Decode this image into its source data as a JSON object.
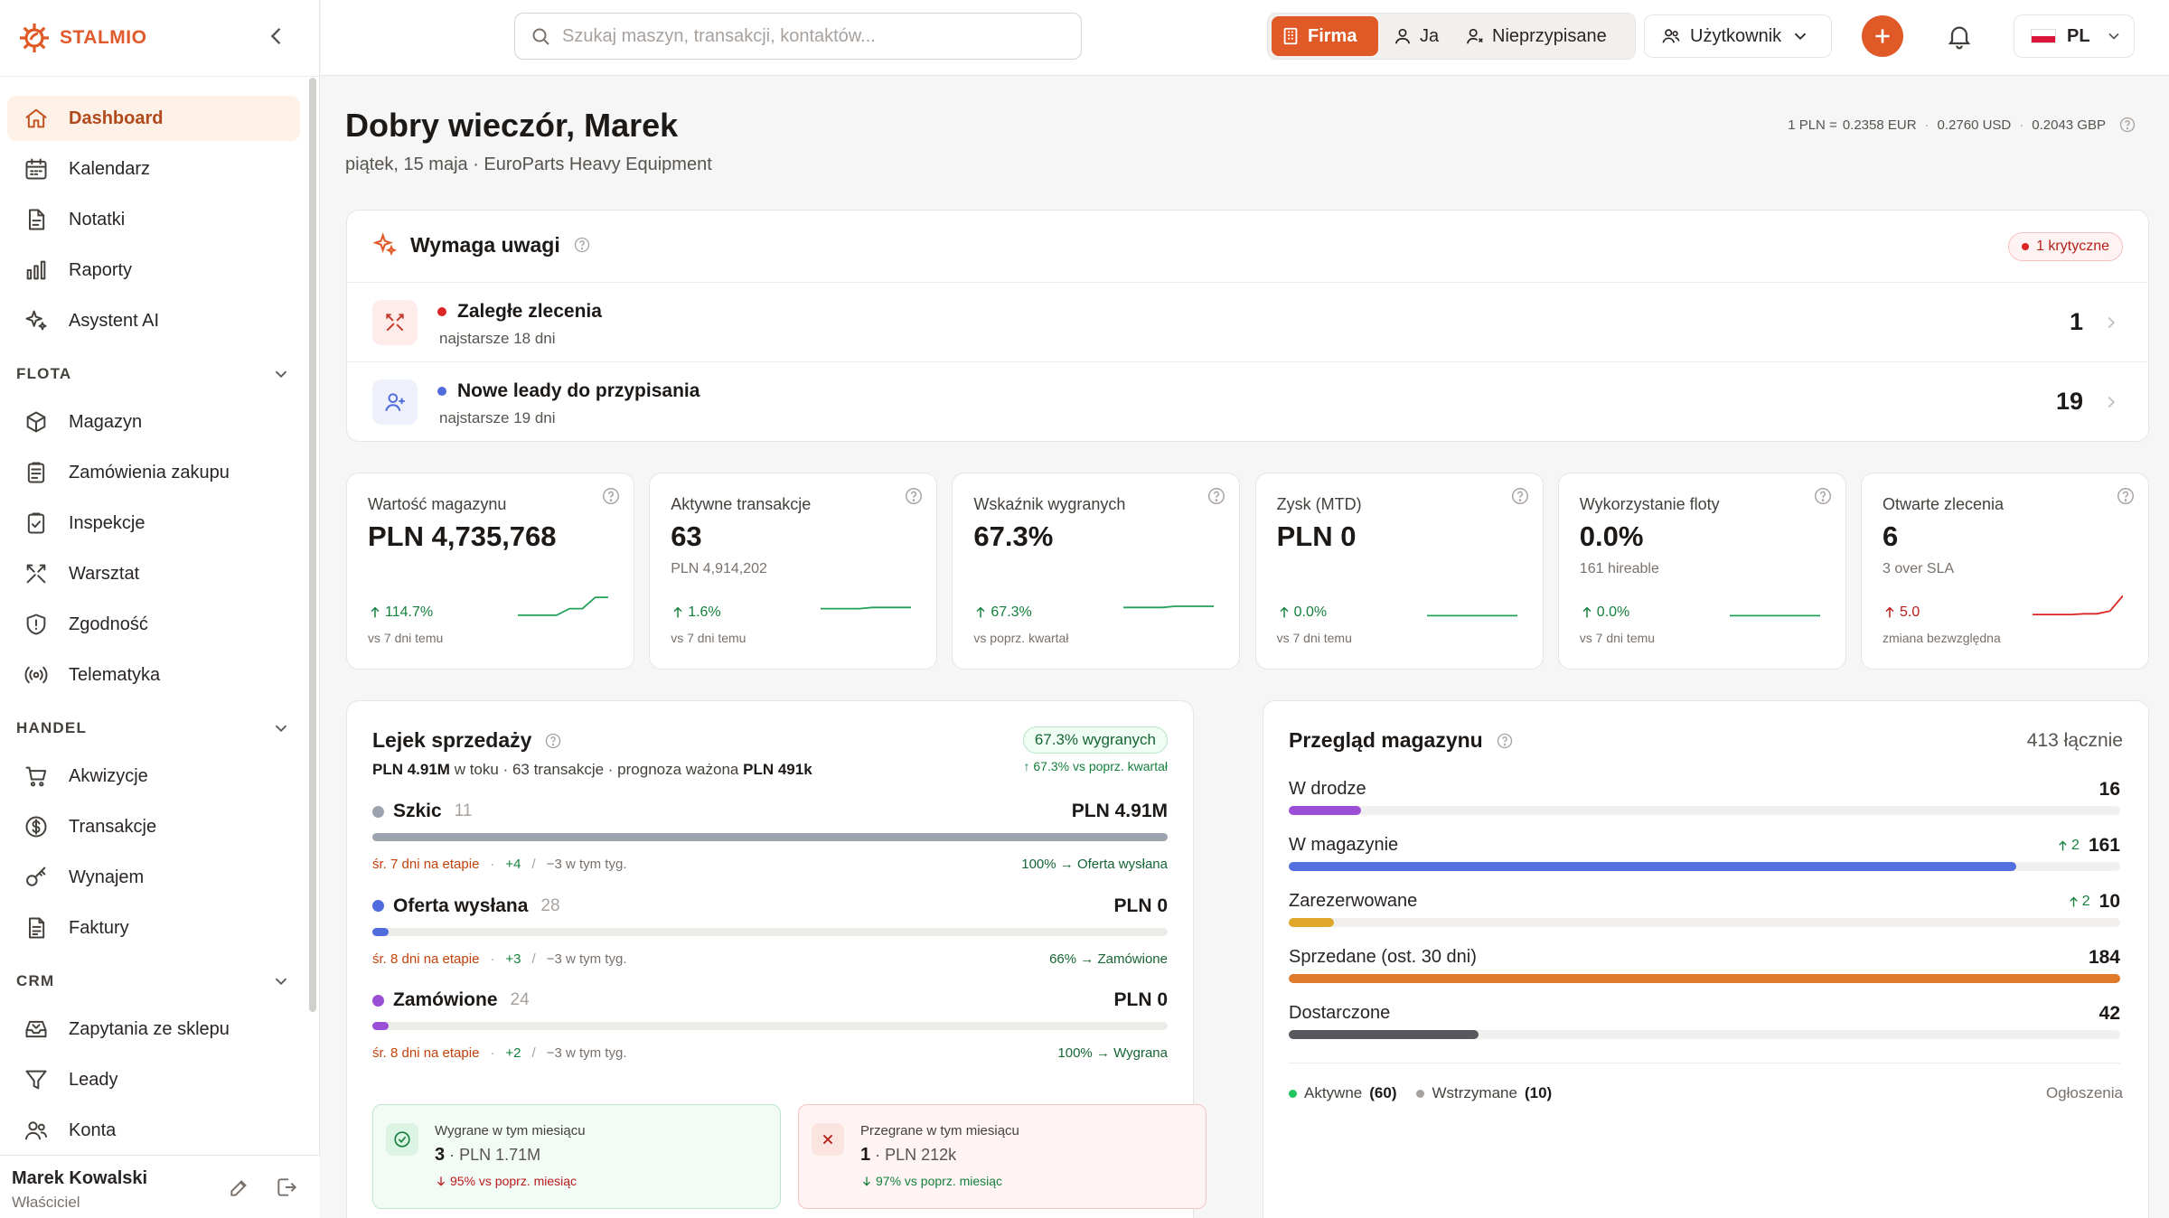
{
  "brand": {
    "name": "STALMIO",
    "accent": "#df5a27"
  },
  "sidebar": {
    "items_top": [
      {
        "label": "Dashboard",
        "icon": "home-icon",
        "active": true
      },
      {
        "label": "Kalendarz",
        "icon": "calendar-icon"
      },
      {
        "label": "Notatki",
        "icon": "note-icon"
      },
      {
        "label": "Raporty",
        "icon": "bar-chart-icon"
      },
      {
        "label": "Asystent AI",
        "icon": "sparkles-icon"
      }
    ],
    "sections": [
      {
        "title": "FLOTA",
        "items": [
          {
            "label": "Magazyn",
            "icon": "box-icon"
          },
          {
            "label": "Zamówienia zakupu",
            "icon": "clipboard-icon"
          },
          {
            "label": "Inspekcje",
            "icon": "clipboard-check-icon"
          },
          {
            "label": "Warsztat",
            "icon": "tools-icon"
          },
          {
            "label": "Zgodność",
            "icon": "shield-icon"
          },
          {
            "label": "Telematyka",
            "icon": "signal-icon"
          }
        ]
      },
      {
        "title": "HANDEL",
        "items": [
          {
            "label": "Akwizycje",
            "icon": "cart-icon"
          },
          {
            "label": "Transakcje",
            "icon": "dollar-icon"
          },
          {
            "label": "Wynajem",
            "icon": "key-icon"
          },
          {
            "label": "Faktury",
            "icon": "invoice-icon"
          }
        ]
      },
      {
        "title": "CRM",
        "items": [
          {
            "label": "Zapytania ze sklepu",
            "icon": "inbox-icon"
          },
          {
            "label": "Leady",
            "icon": "filter-icon"
          },
          {
            "label": "Konta",
            "icon": "users-icon"
          }
        ]
      }
    ],
    "user": {
      "name": "Marek Kowalski",
      "role": "Właściciel"
    }
  },
  "topbar": {
    "search_placeholder": "Szukaj maszyn, transakcji, kontaktów...",
    "scope": {
      "firma": "Firma",
      "ja": "Ja",
      "nieprzypisane": "Nieprzypisane"
    },
    "user_menu": "Użytkownik",
    "lang": "PL"
  },
  "header": {
    "greeting": "Dobry wieczór, Marek",
    "subtitle": "piątek, 15 maja · EuroParts Heavy Equipment",
    "fx": {
      "base": "1 PLN =",
      "eur": "0.2358 EUR",
      "usd": "0.2760 USD",
      "gbp": "0.2043 GBP",
      "sep": "·"
    }
  },
  "attention": {
    "title": "Wymaga uwagi",
    "badge": "1 krytyczne",
    "rows": [
      {
        "title": "Zaległe zlecenia",
        "sub": "najstarsze 18 dni",
        "count": "1",
        "dot": "#dc2626"
      },
      {
        "title": "Nowe leady do przypisania",
        "sub": "najstarsze 19 dni",
        "count": "19",
        "dot": "#4f6bdc"
      }
    ]
  },
  "kpis": [
    {
      "label": "Wartość magazynu",
      "value": "PLN 4,735,768",
      "sub": "",
      "delta": "114.7%",
      "note": "vs 7 dni temu",
      "trend": [
        0.12,
        0.12,
        0.12,
        0.12,
        0.4,
        0.4,
        0.88,
        0.88
      ],
      "dir": "up"
    },
    {
      "label": "Aktywne transakcje",
      "value": "63",
      "sub": "PLN 4,914,202",
      "delta": "1.6%",
      "note": "vs 7 dni temu",
      "trend": [
        0.4,
        0.4,
        0.4,
        0.4,
        0.45,
        0.45,
        0.45,
        0.45
      ],
      "dir": "up"
    },
    {
      "label": "Wskaźnik wygranych",
      "value": "67.3%",
      "sub": "",
      "delta": "67.3%",
      "note": "vs poprz. kwartał",
      "trend": [
        0.45,
        0.45,
        0.45,
        0.45,
        0.5,
        0.5,
        0.5,
        0.5
      ],
      "dir": "up"
    },
    {
      "label": "Zysk (MTD)",
      "value": "PLN 0",
      "sub": "",
      "delta": "0.0%",
      "note": "vs 7 dni temu",
      "trend": [
        0.1,
        0.1,
        0.1,
        0.1,
        0.1,
        0.1,
        0.1,
        0.1
      ],
      "dir": "up"
    },
    {
      "label": "Wykorzystanie floty",
      "value": "0.0%",
      "sub": "161 hireable",
      "delta": "0.0%",
      "note": "vs 7 dni temu",
      "trend": [
        0.1,
        0.1,
        0.1,
        0.1,
        0.1,
        0.1,
        0.1,
        0.1
      ],
      "dir": "up"
    },
    {
      "label": "Otwarte zlecenia",
      "value": "6",
      "sub": "3 over SLA",
      "delta": "5.0",
      "note": "zmiana bezwzględna",
      "trend": [
        0.15,
        0.15,
        0.15,
        0.15,
        0.18,
        0.18,
        0.3,
        0.95
      ],
      "dir": "bad"
    }
  ],
  "funnel": {
    "title": "Lejek sprzedaży",
    "summary_amount": "PLN 4.91M",
    "summary_mid": " w toku · 63 transakcje · prognoza ważona ",
    "summary_forecast": "PLN 491k",
    "win_pill": "67.3% wygranych",
    "win_note": "↑ 67.3% vs poprz. kwartał",
    "stages": [
      {
        "name": "Szkic",
        "count": "11",
        "amount": "PLN 4.91M",
        "fill": 1.0,
        "color": "#9ca3af",
        "avg": "śr. 7 dni na etapie",
        "up": "+4",
        "down": "−3 w tym tyg.",
        "conv": "100% → Oferta wysłana"
      },
      {
        "name": "Oferta wysłana",
        "count": "28",
        "amount": "PLN 0",
        "fill": 0.02,
        "color": "#4f6bdc",
        "avg": "śr. 8 dni na etapie",
        "up": "+3",
        "down": "−3 w tym tyg.",
        "conv": "66% → Zamówione"
      },
      {
        "name": "Zamówione",
        "count": "24",
        "amount": "PLN 0",
        "fill": 0.02,
        "color": "#9b4fd6",
        "avg": "śr. 8 dni na etapie",
        "up": "+2",
        "down": "−3 w tym tyg.",
        "conv": "100% → Wygrana"
      }
    ],
    "sep": "·",
    "slash": "/",
    "won": {
      "title": "Wygrane w tym miesiącu",
      "count": "3",
      "amount": "· PLN 1.71M",
      "delta": "95% vs poprz. miesiąc"
    },
    "lost": {
      "title": "Przegrane w tym miesiącu",
      "count": "1",
      "amount": "· PLN 212k",
      "delta": "97% vs poprz. miesiąc"
    }
  },
  "inventory": {
    "title": "Przegląd magazynu",
    "total": "413 łącznie",
    "rows": [
      {
        "name": "W drodze",
        "value": "16",
        "change": "",
        "fill": 0.087,
        "color": "#9b4fd6"
      },
      {
        "name": "W magazynie",
        "value": "161",
        "change": "2",
        "fill": 0.875,
        "color": "#5470e0"
      },
      {
        "name": "Zarezerwowane",
        "value": "10",
        "change": "2",
        "fill": 0.054,
        "color": "#e0a72b"
      },
      {
        "name": "Sprzedane (ost. 30 dni)",
        "value": "184",
        "change": "",
        "fill": 1.0,
        "color": "#df7a2b"
      },
      {
        "name": "Dostarczone",
        "value": "42",
        "change": "",
        "fill": 0.228,
        "color": "#57595e"
      }
    ],
    "legend": [
      {
        "label": "Aktywne",
        "value": "(60)",
        "color": "#22c55e"
      },
      {
        "label": "Wstrzymane",
        "value": "(10)",
        "color": "#a8a29e"
      }
    ],
    "ads": "Ogłoszenia"
  }
}
